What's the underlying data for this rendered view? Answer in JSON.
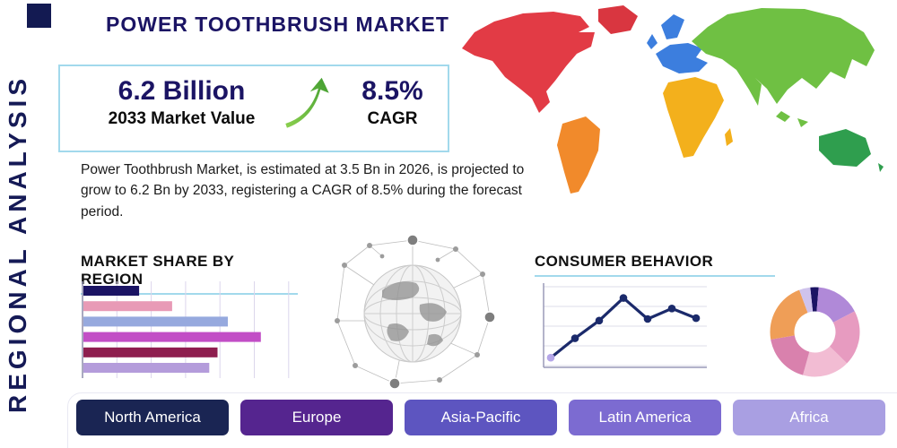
{
  "page": {
    "title": "POWER TOOTHBRUSH MARKET",
    "side_label": "REGIONAL ANALYSIS"
  },
  "stats": {
    "market_value": "6.2 Billion",
    "market_value_label": "2033 Market Value",
    "cagr": "8.5%",
    "cagr_label": "CAGR"
  },
  "description": "Power Toothbrush Market, is estimated at 3.5 Bn in 2026, is projected to grow to 6.2 Bn by 2033, registering a CAGR of 8.5% during the forecast period.",
  "sections": {
    "market_share": "MARKET SHARE BY REGION",
    "consumer_behavior": "CONSUMER BEHAVIOR"
  },
  "regions": [
    {
      "label": "North America",
      "color": "#1a2553"
    },
    {
      "label": "Europe",
      "color": "#55258f"
    },
    {
      "label": "Asia-Pacific",
      "color": "#5d55c0"
    },
    {
      "label": "Latin America",
      "color": "#7c6bd1"
    },
    {
      "label": "Africa",
      "color": "#a99fe2"
    }
  ],
  "map": {
    "continents": [
      {
        "id": "north-america",
        "name": "North America",
        "color": "#e23b45"
      },
      {
        "id": "greenland",
        "name": "Greenland",
        "color": "#d93640"
      },
      {
        "id": "south-america",
        "name": "South America",
        "color": "#f18a2b"
      },
      {
        "id": "europe",
        "name": "Europe",
        "color": "#3c7ede"
      },
      {
        "id": "africa",
        "name": "Africa",
        "color": "#f3b01c"
      },
      {
        "id": "asia",
        "name": "Asia",
        "color": "#6fc043"
      },
      {
        "id": "australia",
        "name": "Australia",
        "color": "#2f9e4e"
      }
    ]
  },
  "accent": {
    "underline": "#a2d9ec",
    "title_color": "#1b1464",
    "arrow_green": "#56b947"
  },
  "chart_data": [
    {
      "id": "market-share-by-region",
      "type": "bar",
      "orientation": "horizontal",
      "title": "MARKET SHARE BY REGION",
      "note": "bars are unlabeled in source; values are relative lengths 0-100",
      "values": [
        27,
        43,
        70,
        86,
        65,
        61
      ],
      "colors": [
        "#1b1464",
        "#e89ab6",
        "#96a9de",
        "#c24ec6",
        "#8e1e4f",
        "#b49cdb"
      ],
      "grid": "vertical",
      "xlim": [
        0,
        100
      ]
    },
    {
      "id": "consumer-behavior",
      "type": "line",
      "title": "CONSUMER BEHAVIOR",
      "x": [
        1,
        2,
        3,
        4,
        5,
        6,
        7
      ],
      "y": [
        1.2,
        3.6,
        5.8,
        8.6,
        6.0,
        7.3,
        6.1
      ],
      "ylim": [
        0,
        10
      ],
      "line_color": "#1b2a6b",
      "first_marker_color": "#b5a6e8",
      "grid": "horizontal"
    },
    {
      "id": "regional-share-donut",
      "type": "pie",
      "donut": true,
      "start_angle": -6,
      "slices": [
        {
          "color": "#1b1464",
          "pct": 3
        },
        {
          "color": "#b089d8",
          "pct": 16
        },
        {
          "color": "#e79bc0",
          "pct": 20
        },
        {
          "color": "#f2bcd3",
          "pct": 17
        },
        {
          "color": "#d981ad",
          "pct": 18
        },
        {
          "color": "#ef9e57",
          "pct": 22
        },
        {
          "color": "#cfc3ec",
          "pct": 4
        }
      ]
    }
  ]
}
